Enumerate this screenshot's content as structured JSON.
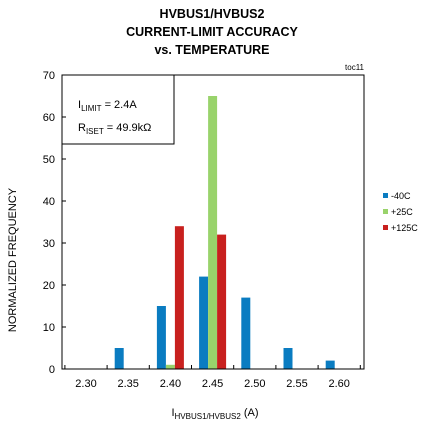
{
  "chart_data": {
    "type": "bar",
    "title_lines": [
      "HVBUS1/HVBUS2",
      "CURRENT-LIMIT ACCURACY",
      "vs. TEMPERATURE"
    ],
    "tag": "toc11",
    "ylabel": "NORMALIZED  FREQUENCY",
    "xlabel": {
      "main": "I",
      "sub": "HVBUS1/HVBUS2",
      "suffix": " (A)"
    },
    "ylim": [
      0,
      70
    ],
    "yticks": [
      0,
      10,
      20,
      30,
      40,
      50,
      60,
      70
    ],
    "categories": [
      "2.30",
      "2.35",
      "2.40",
      "2.45",
      "2.50",
      "2.55",
      "2.60"
    ],
    "series": [
      {
        "name": "-40C",
        "color": "#0a7cc1",
        "values": [
          0,
          5,
          15,
          22,
          17,
          5,
          2
        ]
      },
      {
        "name": "+25C",
        "color": "#99d36b",
        "values": [
          0,
          0,
          1,
          65,
          0,
          0,
          0
        ]
      },
      {
        "name": "+125C",
        "color": "#c8201e",
        "values": [
          0,
          0,
          34,
          32,
          0,
          0,
          0
        ]
      }
    ],
    "legend_position": "right",
    "grid": false,
    "annotation": {
      "line1": {
        "main": "I",
        "sub": "LIMIT",
        "rest": " = 2.4A"
      },
      "line2": {
        "main": "R",
        "sub": "ISET",
        "rest": " = 49.9kΩ"
      }
    }
  }
}
